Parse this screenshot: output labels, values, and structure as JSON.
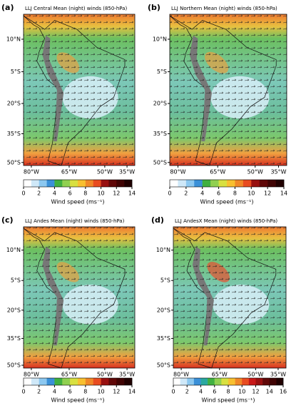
{
  "lat_labels": [
    "10°N",
    "5°S",
    "20°S",
    "35°S",
    "50°S"
  ],
  "lon_labels": [
    "80°W",
    "65°W",
    "50°W",
    "35°W"
  ],
  "panels": [
    {
      "label": "(a)",
      "title": "LLJ Central Mean (night) winds (850-hPa)",
      "colorbar_ticks": [
        "0",
        "2",
        "4",
        "6",
        "8",
        "10",
        "12",
        "14"
      ],
      "colorbar_label": "Wind speed (ms⁻¹)"
    },
    {
      "label": "(b)",
      "title": "LLJ Northern Mean (night) winds (850-hPa)",
      "colorbar_ticks": [
        "0",
        "2",
        "4",
        "6",
        "8",
        "10",
        "12",
        "14"
      ],
      "colorbar_label": "Wind speed (ms⁻¹)"
    },
    {
      "label": "(c)",
      "title": "LLJ Andes Mean (night) winds (850-hPa)",
      "colorbar_ticks": [
        "0",
        "2",
        "4",
        "6",
        "8",
        "10",
        "12",
        "14"
      ],
      "colorbar_label": "Wind speed (ms⁻¹)"
    },
    {
      "label": "(d)",
      "title": "LLJ AndesX Mean (night) winds (850-hPa)",
      "colorbar_ticks": [
        "0",
        "2",
        "4",
        "6",
        "8",
        "10",
        "12",
        "14",
        "16"
      ],
      "colorbar_label": "Wind speed (ms⁻¹)"
    }
  ]
}
